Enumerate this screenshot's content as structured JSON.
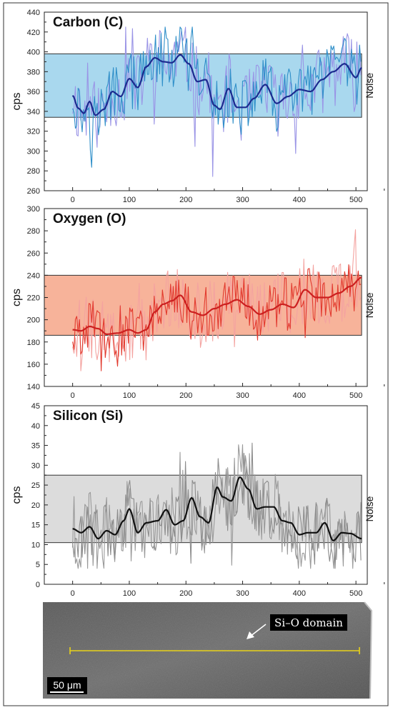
{
  "chart_data": [
    {
      "type": "line",
      "title": "Carbon (C)",
      "ylabel": "cps",
      "band_label": "Noise",
      "xlim": [
        -50,
        520
      ],
      "ylim": [
        260,
        440
      ],
      "xticks": [
        0,
        100,
        200,
        300,
        400,
        500
      ],
      "yticks": [
        260,
        280,
        300,
        320,
        340,
        360,
        380,
        400,
        420,
        440
      ],
      "noise_band": [
        334,
        398
      ],
      "colors": {
        "band": "#a9d8ee",
        "raw_a": "#9a94e6",
        "raw_b": "#2f8fc9",
        "smooth": "#1c2b8f"
      },
      "smooth_knots": {
        "x": [
          0,
          10,
          20,
          30,
          40,
          55,
          70,
          85,
          100,
          115,
          130,
          145,
          160,
          175,
          190,
          205,
          220,
          235,
          250,
          260,
          275,
          290,
          305,
          320,
          340,
          360,
          380,
          400,
          420,
          440,
          460,
          480,
          500,
          510
        ],
        "y": [
          356,
          343,
          338,
          350,
          336,
          342,
          360,
          355,
          373,
          364,
          385,
          394,
          390,
          389,
          397,
          388,
          370,
          372,
          346,
          342,
          363,
          344,
          344,
          353,
          367,
          348,
          355,
          362,
          360,
          372,
          380,
          388,
          374,
          384
        ]
      },
      "raw_range": {
        "min": 273,
        "max": 425
      }
    },
    {
      "type": "line",
      "title": "Oxygen (O)",
      "ylabel": "cps",
      "band_label": "Noise",
      "xlim": [
        -50,
        520
      ],
      "ylim": [
        140,
        300
      ],
      "xticks": [
        0,
        100,
        200,
        300,
        400,
        500
      ],
      "yticks": [
        140,
        160,
        180,
        200,
        220,
        240,
        260,
        280,
        300
      ],
      "noise_band": [
        186,
        240
      ],
      "colors": {
        "band": "#f7b39a",
        "raw_a": "#f4a3a0",
        "raw_b": "#e23a2e",
        "smooth": "#cc1f1f"
      },
      "smooth_knots": {
        "x": [
          0,
          15,
          30,
          45,
          60,
          80,
          100,
          115,
          130,
          145,
          160,
          175,
          190,
          210,
          230,
          250,
          270,
          290,
          310,
          330,
          350,
          370,
          390,
          410,
          430,
          450,
          470,
          490,
          510
        ],
        "y": [
          191,
          190,
          194,
          192,
          187,
          188,
          191,
          188,
          191,
          207,
          214,
          217,
          222,
          207,
          204,
          210,
          214,
          218,
          212,
          205,
          209,
          214,
          211,
          227,
          220,
          220,
          224,
          230,
          238
        ]
      },
      "raw_range": {
        "min": 154,
        "max": 281
      }
    },
    {
      "type": "line",
      "title": "Silicon (Si)",
      "ylabel": "cps",
      "band_label": "Noise",
      "xlim": [
        -50,
        520
      ],
      "ylim": [
        0,
        45
      ],
      "xticks": [
        0,
        100,
        200,
        300,
        400,
        500
      ],
      "yticks": [
        0,
        5,
        10,
        15,
        20,
        25,
        30,
        35,
        40,
        45
      ],
      "noise_band": [
        10.5,
        27.5
      ],
      "colors": {
        "band": "#dcdcdc",
        "raw_a": "#9a9a9a",
        "raw_b": "#8c8c8c",
        "smooth": "#111111"
      },
      "smooth_knots": {
        "x": [
          0,
          15,
          30,
          45,
          60,
          75,
          90,
          100,
          115,
          130,
          150,
          165,
          180,
          195,
          210,
          225,
          240,
          255,
          265,
          280,
          295,
          310,
          325,
          340,
          355,
          370,
          385,
          400,
          415,
          430,
          445,
          460,
          475,
          490,
          510
        ],
        "y": [
          14,
          13,
          14.5,
          11.5,
          13.5,
          12.5,
          16,
          19,
          13,
          15.5,
          16,
          18.8,
          15,
          16,
          21.8,
          17,
          15.5,
          24.5,
          22,
          21,
          27,
          24,
          19,
          19.5,
          19.5,
          16,
          15.5,
          12.5,
          13,
          13,
          15.5,
          11,
          13,
          12.8,
          11.5
        ]
      },
      "raw_range": {
        "min": 4,
        "max": 40
      }
    }
  ],
  "micrograph": {
    "annotation": "Si–O domain",
    "scale_bar": "50 μm",
    "line_color": "#e8d21a"
  }
}
